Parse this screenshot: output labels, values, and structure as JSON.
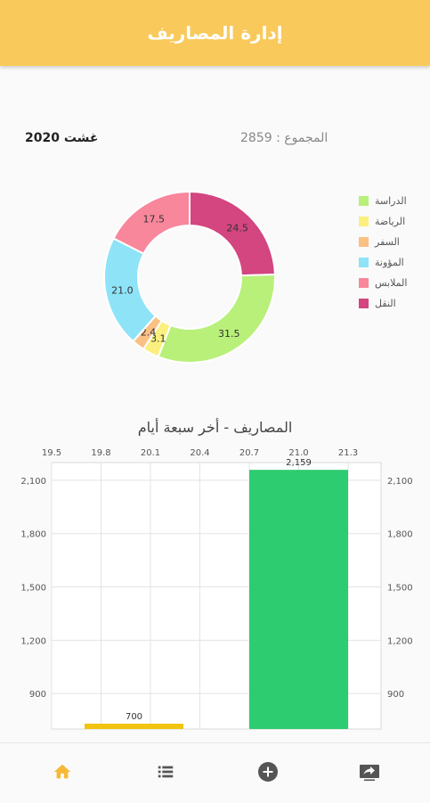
{
  "app": {
    "title": "إدارة المصاريف"
  },
  "summary": {
    "month": "غشت",
    "year": "2020",
    "total_label": "المجموع",
    "total_value": "2859"
  },
  "colors": {
    "appbar": "#f9c95b",
    "bar_green": "#2ecc71",
    "bar_yellow": "#f1c40f",
    "nav_active": "#f5b935",
    "nav_inactive": "#555555"
  },
  "chart_data": [
    {
      "type": "pie",
      "variant": "donut",
      "legend_position": "right",
      "slices": [
        {
          "label": "الدراسة",
          "value": 31.5,
          "color": "#b8f07a"
        },
        {
          "label": "الرياضة",
          "value": 3.1,
          "color": "#fbef7f"
        },
        {
          "label": "السفر",
          "value": 2.4,
          "color": "#fbc084"
        },
        {
          "label": "المؤونة",
          "value": 21.0,
          "color": "#8ee3f7"
        },
        {
          "label": "الملابس",
          "value": 17.5,
          "color": "#f8879c"
        },
        {
          "label": "النقل",
          "value": 24.5,
          "color": "#d34680"
        }
      ]
    },
    {
      "type": "bar",
      "title": "المصاريف - أخر سبعة أيام",
      "xlim": [
        19.5,
        21.5
      ],
      "x_ticks": [
        "19.5",
        "19.8",
        "20.1",
        "20.4",
        "20.7",
        "21.0",
        "21.3"
      ],
      "x_tick_values": [
        19.5,
        19.8,
        20.1,
        20.4,
        20.7,
        21.0,
        21.3
      ],
      "ylim": [
        700,
        2200
      ],
      "y_ticks": [
        "900",
        "1,200",
        "1,500",
        "1,800",
        "2,100"
      ],
      "y_tick_values": [
        900,
        1200,
        1500,
        1800,
        2100
      ],
      "grid": true,
      "bars": [
        {
          "x": 20.0,
          "value": 700,
          "label": "700",
          "color": "#f1c40f"
        },
        {
          "x": 21.0,
          "value": 2159,
          "label": "2,159",
          "color": "#2ecc71"
        }
      ]
    }
  ],
  "navbar": {
    "items": [
      {
        "icon": "home-icon",
        "active": true
      },
      {
        "icon": "list-icon",
        "active": false
      },
      {
        "icon": "add-circle-icon",
        "active": false
      },
      {
        "icon": "share-screen-icon",
        "active": false
      }
    ]
  }
}
